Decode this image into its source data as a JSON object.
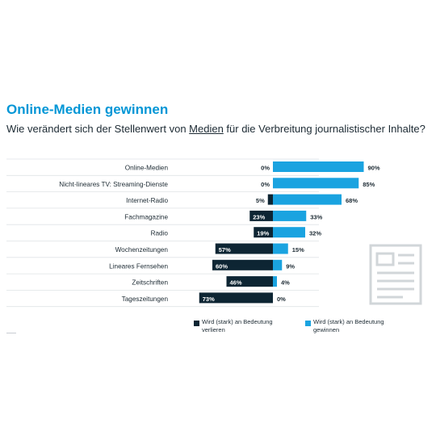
{
  "header": {
    "title": "Online-Medien gewinnen",
    "subtitle_before": "Wie verändert sich der Stellenwert von ",
    "subtitle_link": "Medien",
    "subtitle_after": " für die Verbreitung journalistischer Inhalte?"
  },
  "colors": {
    "lose": "#0d2533",
    "gain": "#1aa3e0",
    "title": "#0096d6"
  },
  "icon": "newspaper-icon",
  "chart_data": {
    "type": "bar",
    "orientation": "horizontal-diverging",
    "title": "Online-Medien gewinnen",
    "subtitle": "Wie verändert sich der Stellenwert von Medien für die Verbreitung journalistischer Inhalte?",
    "categories": [
      "Online-Medien",
      "Nicht-lineares TV: Streaming-Dienste",
      "Internet-Radio",
      "Fachmagazine",
      "Radio",
      "Wochenzeitungen",
      "Lineares Fernsehen",
      "Zeitschriften",
      "Tageszeitungen"
    ],
    "series": [
      {
        "name": "Wird (stark) an Bedeutung verlieren",
        "values": [
          0,
          0,
          5,
          23,
          19,
          57,
          60,
          46,
          73
        ],
        "labels": [
          "0%",
          "0%",
          "5%",
          "23%",
          "19%",
          "57%",
          "60%",
          "46%",
          "73%"
        ]
      },
      {
        "name": "Wird (stark) an Bedeutung gewinnen",
        "values": [
          90,
          85,
          68,
          33,
          32,
          15,
          9,
          4,
          0
        ],
        "labels": [
          "90%",
          "85%",
          "68%",
          "33%",
          "32%",
          "15%",
          "9%",
          "4%",
          "0%"
        ]
      }
    ],
    "legend": {
      "placement": "bottom",
      "lose_line1": "Wird (stark) an Bedeutung",
      "lose_line2": "verlieren",
      "gain_line1": "Wird (stark) an Bedeutung",
      "gain_line2": "gewinnen"
    }
  }
}
